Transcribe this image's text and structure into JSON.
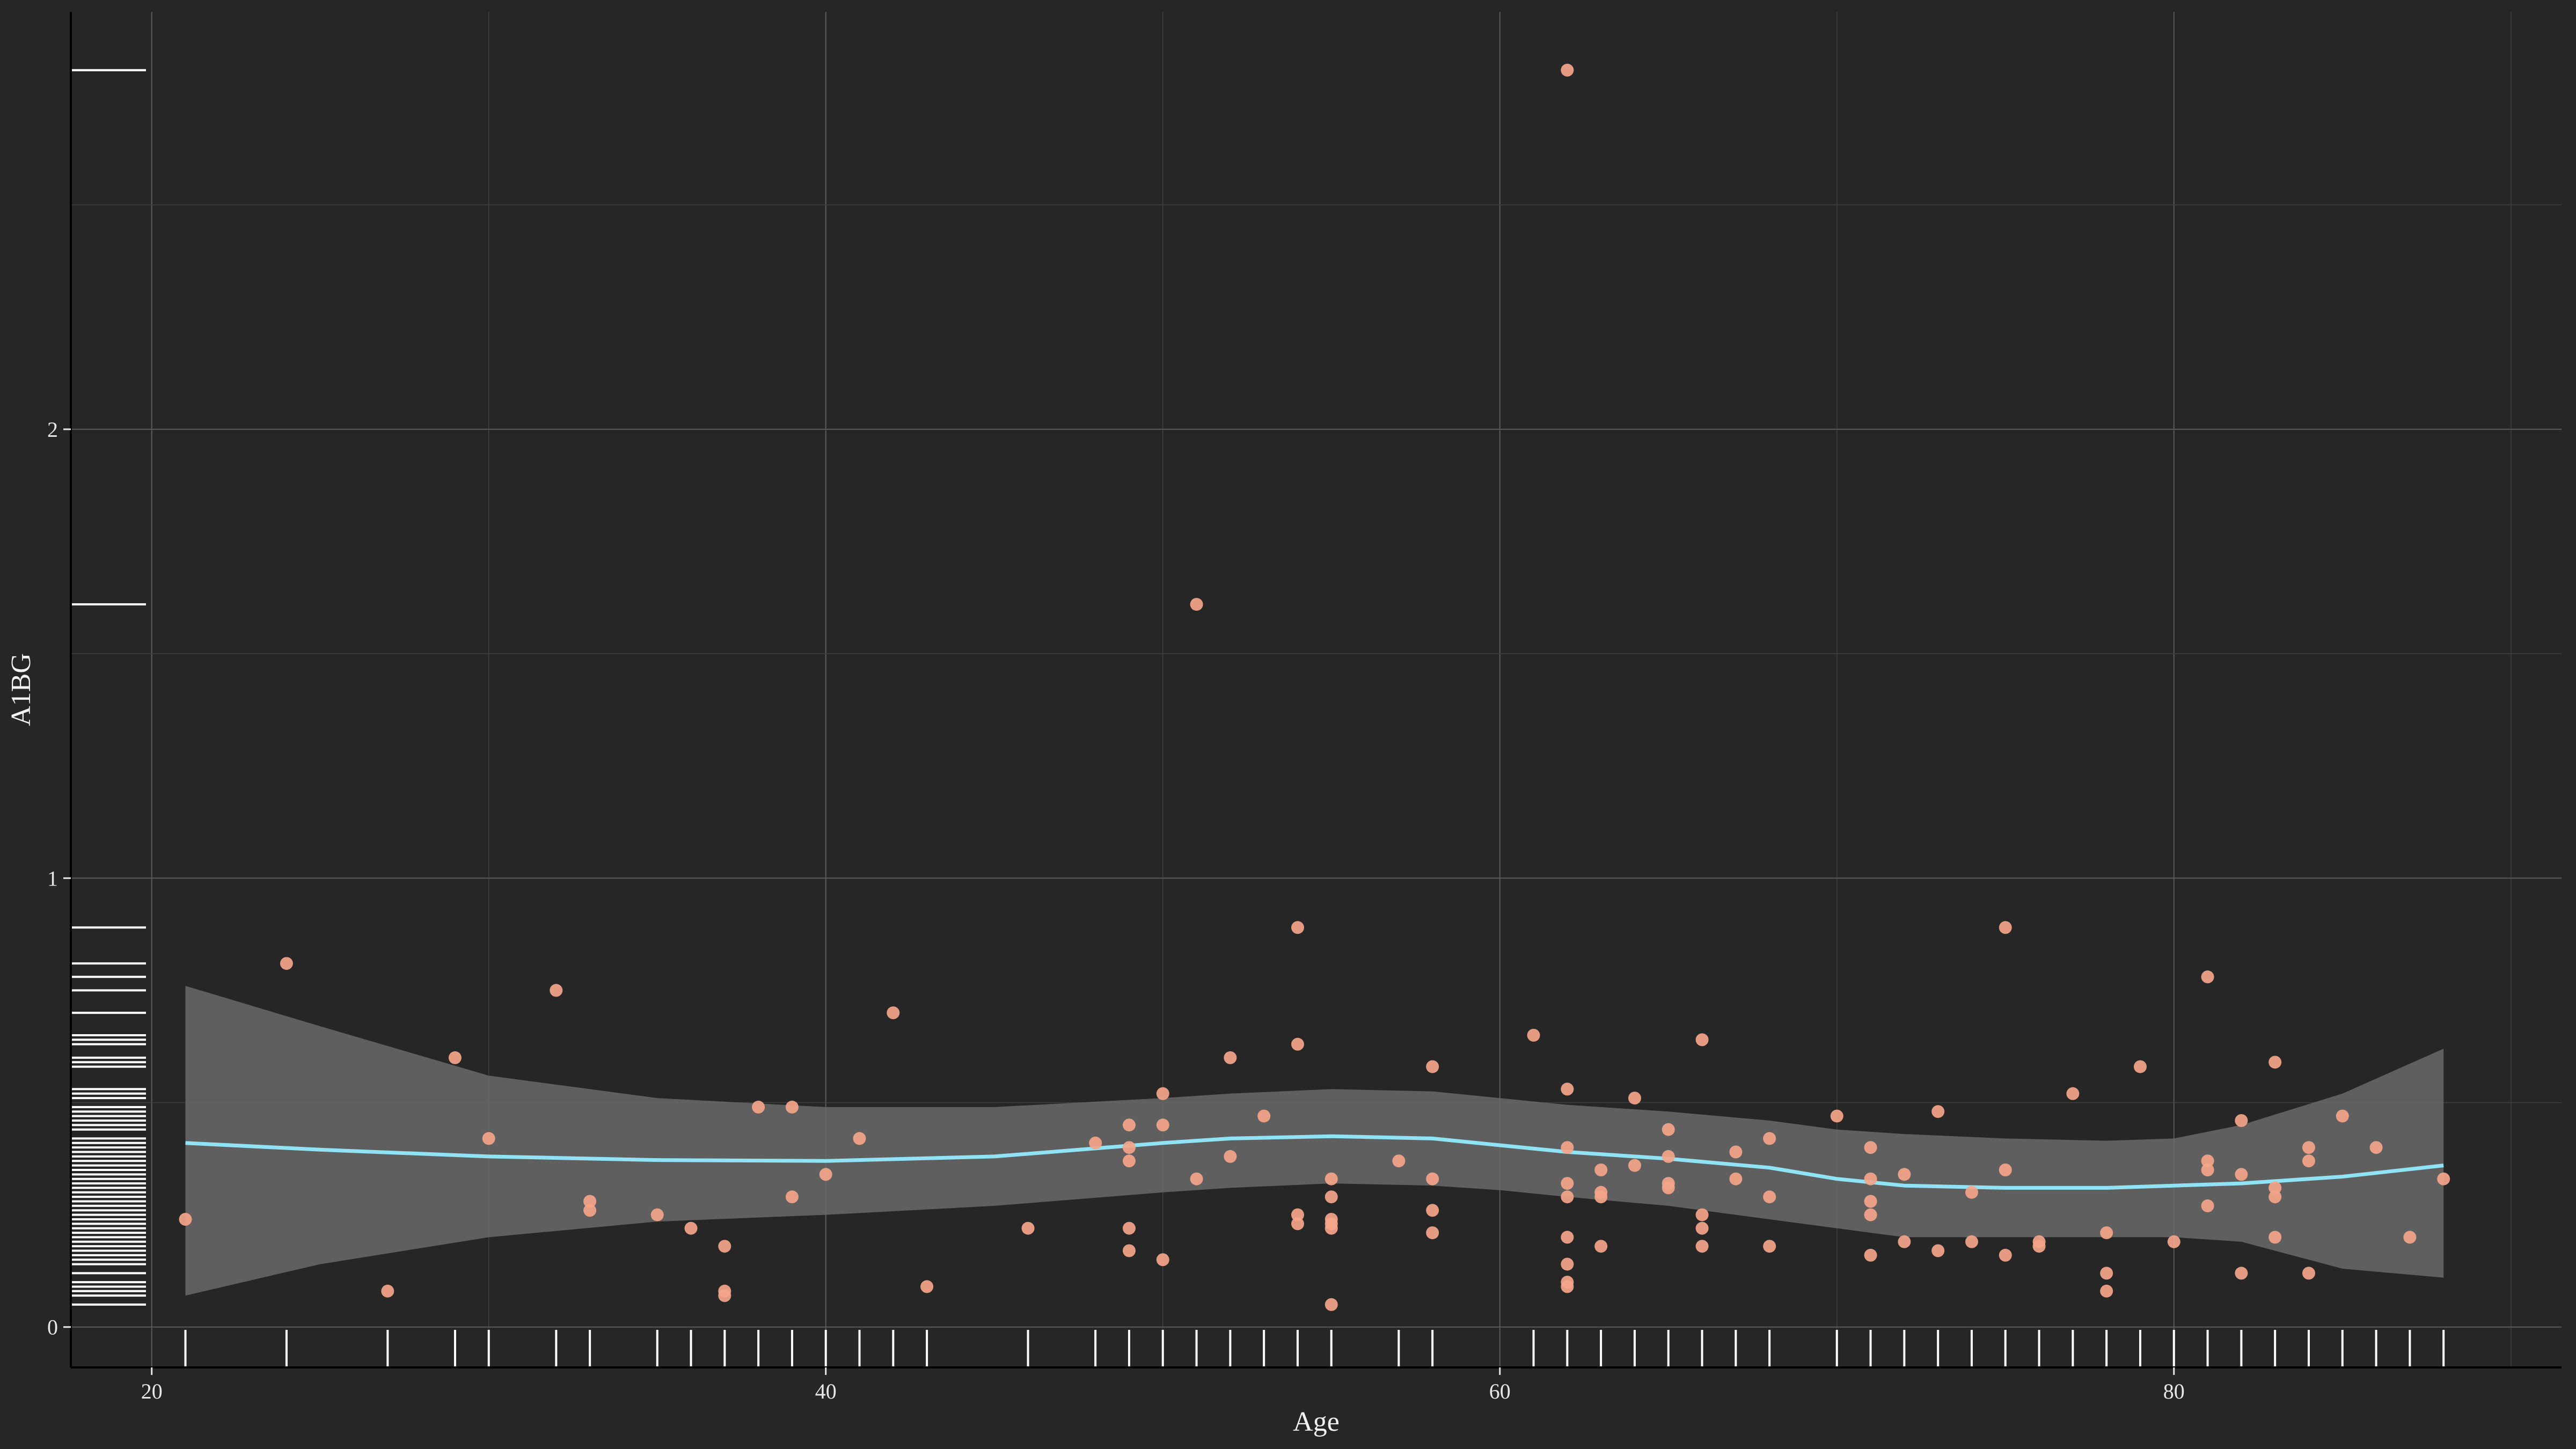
{
  "chart_data": {
    "type": "scatter",
    "title": "",
    "xlabel": "Age",
    "ylabel": "A1BG",
    "xlim": [
      17.6,
      91.5
    ],
    "ylim": [
      -0.09,
      2.93
    ],
    "x_ticks": [
      20,
      40,
      60,
      80
    ],
    "y_ticks": [
      0,
      1,
      2
    ],
    "x_tick_labels": [
      "20",
      "40",
      "60",
      "80"
    ],
    "y_tick_labels": [
      "0",
      "1",
      "2"
    ],
    "grid": true,
    "legend": "none",
    "colors": {
      "background": "#262626",
      "grid_major": "#5a5a5a",
      "grid_minor": "#404040",
      "points": "#f4a58a",
      "smooth_line": "#8fe3f5",
      "ribbon": "#6a6a6a",
      "rug": "#ffffff",
      "axis": "#e8e8e8"
    },
    "points": [
      [
        21,
        0.24
      ],
      [
        24,
        0.81
      ],
      [
        27,
        0.08
      ],
      [
        29,
        0.6
      ],
      [
        30,
        0.42
      ],
      [
        32,
        0.75
      ],
      [
        33,
        0.28
      ],
      [
        33,
        0.26
      ],
      [
        35,
        0.25
      ],
      [
        36,
        0.22
      ],
      [
        37,
        0.18
      ],
      [
        37,
        0.08
      ],
      [
        37,
        0.07
      ],
      [
        38,
        0.49
      ],
      [
        39,
        0.49
      ],
      [
        39,
        0.29
      ],
      [
        40,
        0.34
      ],
      [
        41,
        0.42
      ],
      [
        42,
        0.7
      ],
      [
        43,
        0.09
      ],
      [
        46,
        0.22
      ],
      [
        48,
        0.41
      ],
      [
        49,
        0.45
      ],
      [
        49,
        0.4
      ],
      [
        49,
        0.37
      ],
      [
        49,
        0.22
      ],
      [
        49,
        0.17
      ],
      [
        50,
        0.52
      ],
      [
        50,
        0.45
      ],
      [
        50,
        0.15
      ],
      [
        51,
        1.61
      ],
      [
        51,
        0.33
      ],
      [
        52,
        0.6
      ],
      [
        52,
        0.38
      ],
      [
        53,
        0.47
      ],
      [
        54,
        0.89
      ],
      [
        54,
        0.63
      ],
      [
        54,
        0.25
      ],
      [
        54,
        0.23
      ],
      [
        55,
        0.33
      ],
      [
        55,
        0.29
      ],
      [
        55,
        0.24
      ],
      [
        55,
        0.23
      ],
      [
        55,
        0.22
      ],
      [
        55,
        0.05
      ],
      [
        57,
        0.37
      ],
      [
        58,
        0.58
      ],
      [
        58,
        0.33
      ],
      [
        58,
        0.26
      ],
      [
        58,
        0.21
      ],
      [
        61,
        0.65
      ],
      [
        62,
        2.8
      ],
      [
        62,
        0.53
      ],
      [
        62,
        0.4
      ],
      [
        62,
        0.32
      ],
      [
        62,
        0.29
      ],
      [
        62,
        0.2
      ],
      [
        62,
        0.14
      ],
      [
        62,
        0.1
      ],
      [
        62,
        0.09
      ],
      [
        63,
        0.35
      ],
      [
        63,
        0.3
      ],
      [
        63,
        0.29
      ],
      [
        63,
        0.18
      ],
      [
        64,
        0.51
      ],
      [
        64,
        0.36
      ],
      [
        65,
        0.44
      ],
      [
        65,
        0.38
      ],
      [
        65,
        0.32
      ],
      [
        65,
        0.31
      ],
      [
        66,
        0.64
      ],
      [
        66,
        0.25
      ],
      [
        66,
        0.22
      ],
      [
        66,
        0.18
      ],
      [
        67,
        0.39
      ],
      [
        67,
        0.33
      ],
      [
        68,
        0.42
      ],
      [
        68,
        0.29
      ],
      [
        68,
        0.18
      ],
      [
        70,
        0.47
      ],
      [
        71,
        0.4
      ],
      [
        71,
        0.33
      ],
      [
        71,
        0.28
      ],
      [
        71,
        0.25
      ],
      [
        71,
        0.16
      ],
      [
        72,
        0.34
      ],
      [
        72,
        0.19
      ],
      [
        73,
        0.48
      ],
      [
        73,
        0.17
      ],
      [
        74,
        0.3
      ],
      [
        74,
        0.19
      ],
      [
        75,
        0.89
      ],
      [
        75,
        0.35
      ],
      [
        75,
        0.16
      ],
      [
        76,
        0.19
      ],
      [
        76,
        0.18
      ],
      [
        77,
        0.52
      ],
      [
        78,
        0.21
      ],
      [
        78,
        0.12
      ],
      [
        78,
        0.08
      ],
      [
        79,
        0.58
      ],
      [
        80,
        0.19
      ],
      [
        81,
        0.78
      ],
      [
        81,
        0.37
      ],
      [
        81,
        0.35
      ],
      [
        81,
        0.27
      ],
      [
        82,
        0.46
      ],
      [
        82,
        0.34
      ],
      [
        82,
        0.12
      ],
      [
        83,
        0.59
      ],
      [
        83,
        0.31
      ],
      [
        83,
        0.29
      ],
      [
        83,
        0.2
      ],
      [
        84,
        0.4
      ],
      [
        84,
        0.37
      ],
      [
        84,
        0.12
      ],
      [
        85,
        0.47
      ],
      [
        86,
        0.4
      ],
      [
        87,
        0.2
      ],
      [
        88,
        0.33
      ]
    ],
    "smooth_fit": {
      "x": [
        21,
        25,
        30,
        35,
        40,
        45,
        50,
        52,
        55,
        58,
        60,
        62,
        65,
        68,
        70,
        72,
        75,
        78,
        80,
        82,
        85,
        88
      ],
      "y": [
        0.41,
        0.395,
        0.38,
        0.372,
        0.37,
        0.38,
        0.41,
        0.42,
        0.425,
        0.42,
        0.405,
        0.39,
        0.375,
        0.355,
        0.33,
        0.315,
        0.31,
        0.31,
        0.315,
        0.32,
        0.335,
        0.36
      ],
      "lower": [
        0.07,
        0.14,
        0.2,
        0.235,
        0.25,
        0.27,
        0.3,
        0.31,
        0.32,
        0.315,
        0.305,
        0.29,
        0.27,
        0.24,
        0.22,
        0.2,
        0.2,
        0.2,
        0.2,
        0.19,
        0.13,
        0.11
      ],
      "upper": [
        0.76,
        0.67,
        0.56,
        0.51,
        0.49,
        0.49,
        0.51,
        0.52,
        0.53,
        0.525,
        0.51,
        0.495,
        0.48,
        0.46,
        0.44,
        0.43,
        0.42,
        0.415,
        0.42,
        0.45,
        0.52,
        0.62
      ]
    }
  }
}
